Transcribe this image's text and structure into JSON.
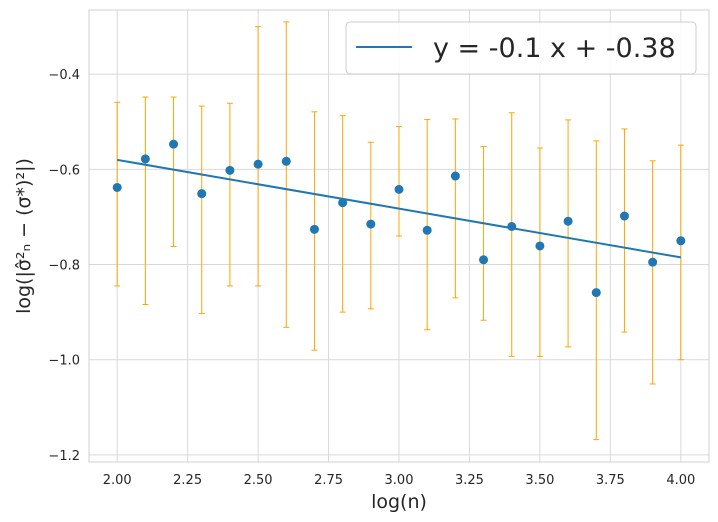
{
  "chart_data": {
    "type": "scatter",
    "title": "",
    "xlabel": "log(n)",
    "ylabel": "log(|σ̂²ₙ − (σ*)²|)",
    "xlim": [
      1.9,
      4.1
    ],
    "ylim": [
      -1.215,
      -0.265
    ],
    "x_ticks": [
      2.0,
      2.25,
      2.5,
      2.75,
      3.0,
      3.25,
      3.5,
      3.75,
      4.0
    ],
    "x_tick_labels": [
      "2.00",
      "2.25",
      "2.50",
      "2.75",
      "3.00",
      "3.25",
      "3.50",
      "3.75",
      "4.00"
    ],
    "y_ticks": [
      -1.2,
      -1.0,
      -0.8,
      -0.6,
      -0.4
    ],
    "y_tick_labels": [
      "−1.2",
      "−1.0",
      "−0.8",
      "−0.6",
      "−0.4"
    ],
    "grid": true,
    "legend_position": "top-right",
    "colors": {
      "points": "#1f77b4",
      "fit_line": "#1f77b4",
      "error_bars": "#ffa500",
      "grid": "#d9d9d9",
      "spine": "#d0d0d0"
    },
    "series": [
      {
        "kind": "points_with_error_bars",
        "x": [
          2.0,
          2.1,
          2.2,
          2.3,
          2.4,
          2.5,
          2.6,
          2.7,
          2.8,
          2.9,
          3.0,
          3.1,
          3.2,
          3.3,
          3.4,
          3.5,
          3.6,
          3.7,
          3.8,
          3.9,
          4.0
        ],
        "y": [
          -0.638,
          -0.578,
          -0.547,
          -0.651,
          -0.602,
          -0.589,
          -0.583,
          -0.726,
          -0.67,
          -0.715,
          -0.642,
          -0.728,
          -0.614,
          -0.79,
          -0.72,
          -0.761,
          -0.709,
          -0.859,
          -0.698,
          -0.795,
          -0.75
        ],
        "err_low": [
          -0.845,
          -0.884,
          -0.762,
          -0.903,
          -0.845,
          -0.845,
          -0.932,
          -0.98,
          -0.9,
          -0.893,
          -0.74,
          -0.937,
          -0.87,
          -0.917,
          -0.993,
          -0.993,
          -0.973,
          -1.168,
          -0.942,
          -1.051,
          -1.0
        ],
        "err_high": [
          -0.459,
          -0.448,
          -0.448,
          -0.467,
          -0.461,
          -0.3,
          -0.29,
          -0.479,
          -0.487,
          -0.543,
          -0.51,
          -0.495,
          -0.494,
          -0.552,
          -0.481,
          -0.555,
          -0.496,
          -0.54,
          -0.515,
          -0.582,
          -0.549
        ]
      },
      {
        "kind": "line",
        "name": "y = -0.1 x + -0.38",
        "x": [
          2.0,
          4.0
        ],
        "y": [
          -0.58,
          -0.785
        ]
      }
    ]
  }
}
